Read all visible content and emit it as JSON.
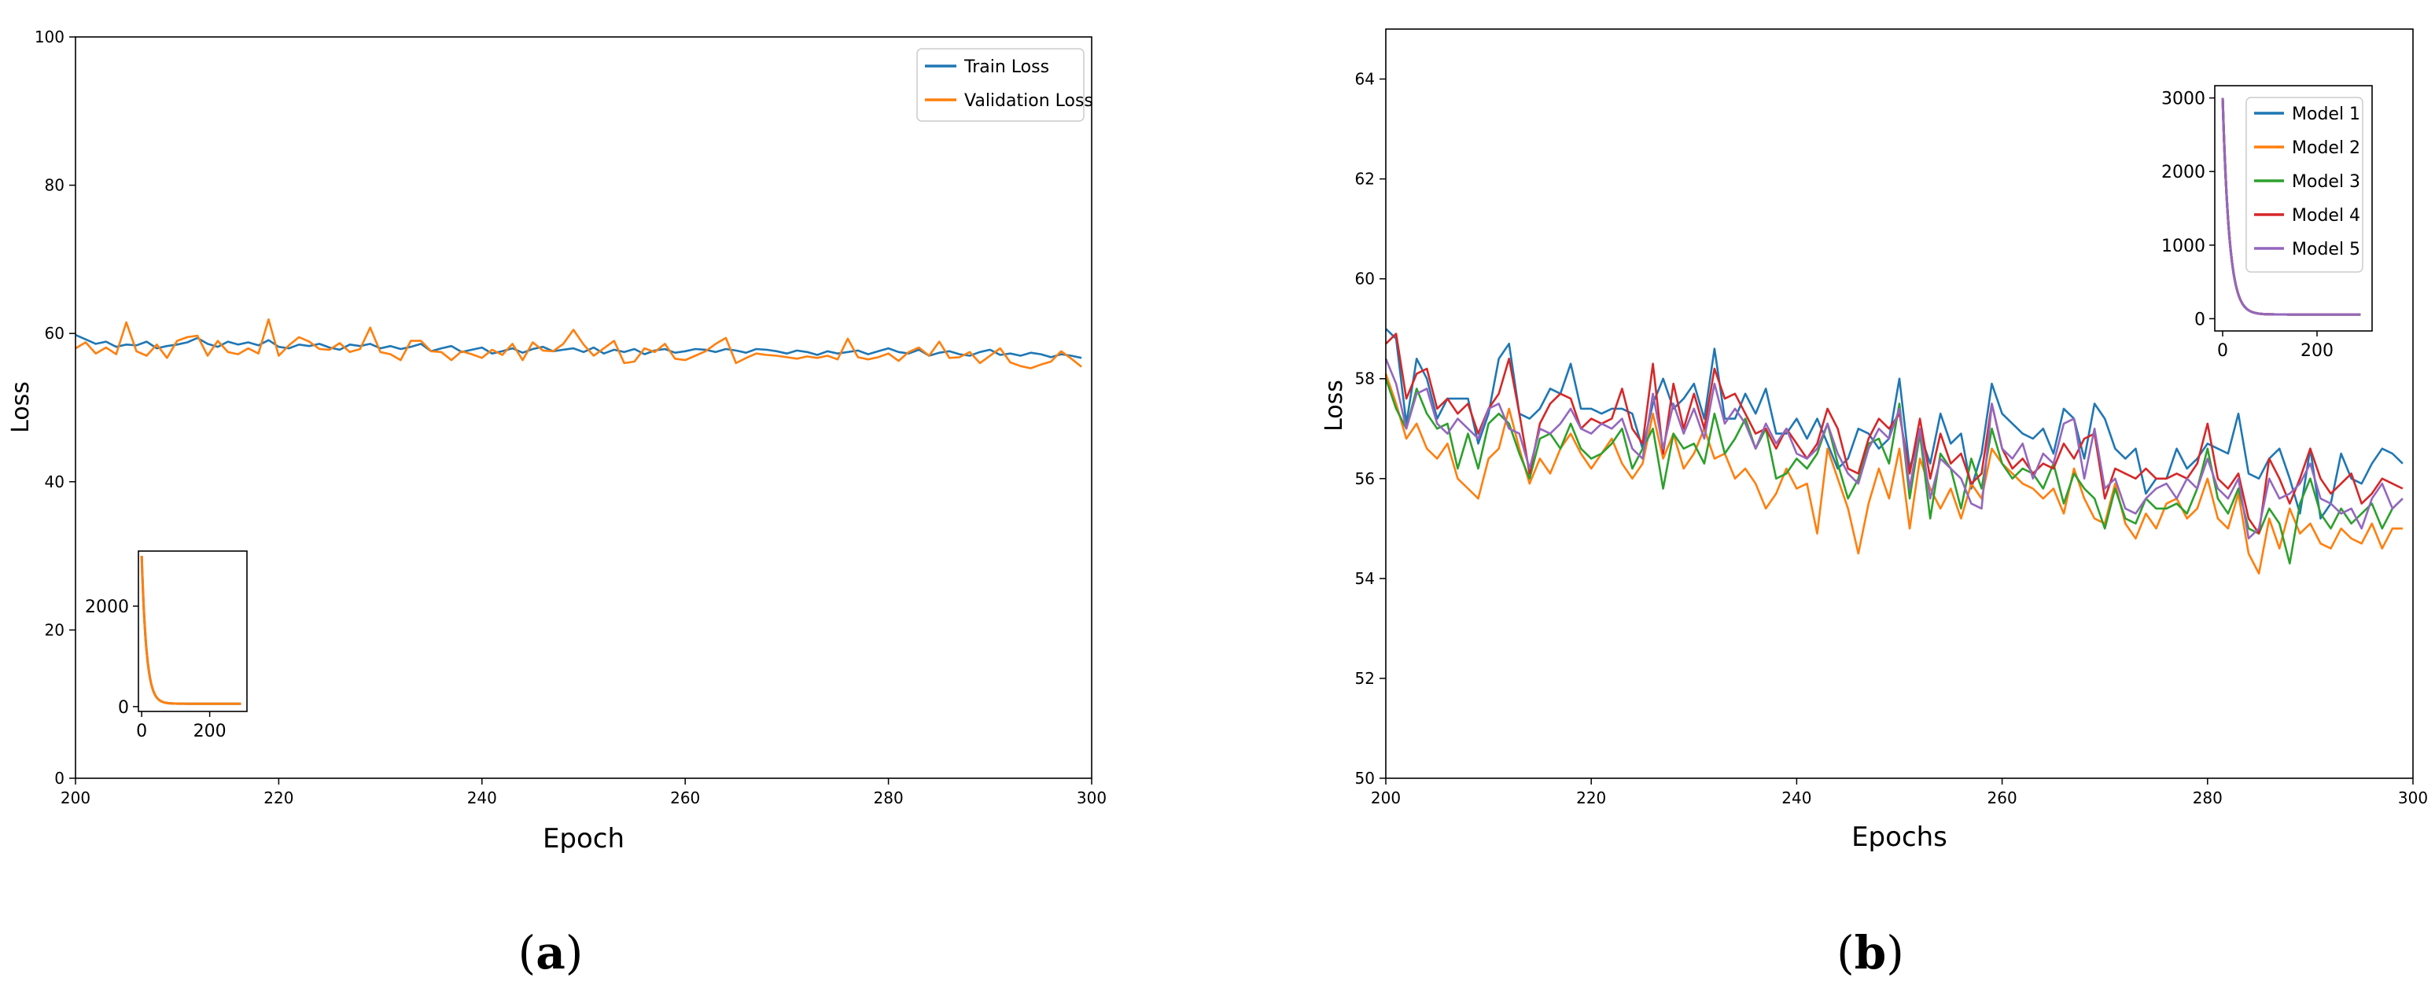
{
  "chart_data": [
    {
      "type": "line",
      "panel_label_open": "(",
      "panel_label_letter": "a",
      "panel_label_close": ")",
      "xlabel": "Epoch",
      "ylabel": "Loss",
      "xlim": [
        200,
        300
      ],
      "ylim": [
        0,
        100
      ],
      "xticks": [
        200,
        220,
        240,
        260,
        280,
        300
      ],
      "yticks": [
        0,
        20,
        40,
        60,
        80,
        100
      ],
      "grid": false,
      "legend_position": "top-right",
      "x": [
        200,
        201,
        202,
        203,
        204,
        205,
        206,
        207,
        208,
        209,
        210,
        211,
        212,
        213,
        214,
        215,
        216,
        217,
        218,
        219,
        220,
        221,
        222,
        223,
        224,
        225,
        226,
        227,
        228,
        229,
        230,
        231,
        232,
        233,
        234,
        235,
        236,
        237,
        238,
        239,
        240,
        241,
        242,
        243,
        244,
        245,
        246,
        247,
        248,
        249,
        250,
        251,
        252,
        253,
        254,
        255,
        256,
        257,
        258,
        259,
        260,
        261,
        262,
        263,
        264,
        265,
        266,
        267,
        268,
        269,
        270,
        271,
        272,
        273,
        274,
        275,
        276,
        277,
        278,
        279,
        280,
        281,
        282,
        283,
        284,
        285,
        286,
        287,
        288,
        289,
        290,
        291,
        292,
        293,
        294,
        295,
        296,
        297,
        298,
        299
      ],
      "series": [
        {
          "name": "Train Loss",
          "color": "#1f77b4",
          "values": [
            59.8,
            59.2,
            58.6,
            58.9,
            58.2,
            58.5,
            58.4,
            58.9,
            58.0,
            58.3,
            58.5,
            58.8,
            59.4,
            58.6,
            58.2,
            58.9,
            58.5,
            58.8,
            58.4,
            59.1,
            58.2,
            58.0,
            58.5,
            58.3,
            58.6,
            58.1,
            57.8,
            58.5,
            58.3,
            58.6,
            58.0,
            58.3,
            57.9,
            58.2,
            58.6,
            57.6,
            58.0,
            58.3,
            57.5,
            57.8,
            58.1,
            57.3,
            57.6,
            58.0,
            57.4,
            57.9,
            58.2,
            57.6,
            57.8,
            58.0,
            57.5,
            58.1,
            57.3,
            57.8,
            57.5,
            57.9,
            57.2,
            57.7,
            57.9,
            57.4,
            57.6,
            57.9,
            57.8,
            57.5,
            57.9,
            57.7,
            57.4,
            57.9,
            57.8,
            57.6,
            57.3,
            57.7,
            57.5,
            57.1,
            57.6,
            57.3,
            57.5,
            57.7,
            57.2,
            57.6,
            58.0,
            57.5,
            57.3,
            57.8,
            57.0,
            57.4,
            57.6,
            57.2,
            57.0,
            57.5,
            57.8,
            57.1,
            57.3,
            57.0,
            57.4,
            57.2,
            56.8,
            57.2,
            57.0,
            56.7
          ]
        },
        {
          "name": "Validation Loss",
          "color": "#ff7f0e",
          "values": [
            58.0,
            58.8,
            57.3,
            58.1,
            57.2,
            61.5,
            57.6,
            57.0,
            58.5,
            56.7,
            59.0,
            59.5,
            59.7,
            57.0,
            59.0,
            57.5,
            57.2,
            58.0,
            57.3,
            61.9,
            57.0,
            58.4,
            59.5,
            58.9,
            57.9,
            57.8,
            58.7,
            57.5,
            57.9,
            60.8,
            57.5,
            57.2,
            56.4,
            59.0,
            59.0,
            57.6,
            57.5,
            56.4,
            57.6,
            57.2,
            56.7,
            57.8,
            57.1,
            58.6,
            56.4,
            58.8,
            57.7,
            57.6,
            58.6,
            60.5,
            58.5,
            57.0,
            58.0,
            59.0,
            56.0,
            56.2,
            58.0,
            57.5,
            58.6,
            56.6,
            56.4,
            57.0,
            57.6,
            58.6,
            59.4,
            56.0,
            56.7,
            57.3,
            57.1,
            57.0,
            56.8,
            56.6,
            56.9,
            56.7,
            57.0,
            56.5,
            59.3,
            56.8,
            56.5,
            56.8,
            57.3,
            56.3,
            57.5,
            58.1,
            57.0,
            58.9,
            56.7,
            56.8,
            57.5,
            56.0,
            57.0,
            58.0,
            56.1,
            55.6,
            55.3,
            55.8,
            56.2,
            57.6,
            56.6,
            55.5
          ]
        }
      ],
      "inset": {
        "type": "line",
        "xlim": [
          0,
          300
        ],
        "ylim": [
          0,
          3000
        ],
        "xticks": [
          0,
          200
        ],
        "yticks": [
          0,
          2000
        ],
        "start_value": 3000,
        "floor_value": 58
      }
    },
    {
      "type": "line",
      "panel_label_open": "(",
      "panel_label_letter": "b",
      "panel_label_close": ")",
      "xlabel": "Epochs",
      "ylabel": "Loss",
      "xlim": [
        200,
        300
      ],
      "ylim": [
        50,
        65
      ],
      "xticks": [
        200,
        220,
        240,
        260,
        280,
        300
      ],
      "yticks": [
        50,
        52,
        54,
        56,
        58,
        60,
        62,
        64
      ],
      "grid": false,
      "legend_position": "top-right (inside inset)",
      "x": [
        200,
        201,
        202,
        203,
        204,
        205,
        206,
        207,
        208,
        209,
        210,
        211,
        212,
        213,
        214,
        215,
        216,
        217,
        218,
        219,
        220,
        221,
        222,
        223,
        224,
        225,
        226,
        227,
        228,
        229,
        230,
        231,
        232,
        233,
        234,
        235,
        236,
        237,
        238,
        239,
        240,
        241,
        242,
        243,
        244,
        245,
        246,
        247,
        248,
        249,
        250,
        251,
        252,
        253,
        254,
        255,
        256,
        257,
        258,
        259,
        260,
        261,
        262,
        263,
        264,
        265,
        266,
        267,
        268,
        269,
        270,
        271,
        272,
        273,
        274,
        275,
        276,
        277,
        278,
        279,
        280,
        281,
        282,
        283,
        284,
        285,
        286,
        287,
        288,
        289,
        290,
        291,
        292,
        293,
        294,
        295,
        296,
        297,
        298,
        299
      ],
      "series": [
        {
          "name": "Model 1",
          "color": "#1f77b4",
          "values": [
            59.0,
            58.8,
            57.1,
            58.4,
            58.0,
            57.2,
            57.6,
            57.6,
            57.6,
            56.7,
            57.3,
            58.4,
            58.7,
            57.3,
            57.2,
            57.4,
            57.8,
            57.7,
            58.3,
            57.4,
            57.4,
            57.3,
            57.4,
            57.4,
            57.3,
            56.6,
            57.5,
            58.0,
            57.4,
            57.6,
            57.9,
            57.2,
            58.6,
            57.2,
            57.2,
            57.7,
            57.3,
            57.8,
            56.9,
            56.9,
            57.2,
            56.8,
            57.2,
            56.7,
            56.2,
            56.4,
            57.0,
            56.9,
            56.6,
            56.8,
            58.0,
            56.2,
            56.9,
            56.3,
            57.3,
            56.7,
            56.9,
            55.8,
            56.5,
            57.9,
            57.3,
            57.1,
            56.9,
            56.8,
            57.0,
            56.5,
            57.4,
            57.2,
            56.4,
            57.5,
            57.2,
            56.6,
            56.4,
            56.6,
            55.7,
            56.0,
            56.0,
            56.6,
            56.2,
            56.4,
            56.7,
            56.6,
            56.5,
            57.3,
            56.1,
            56.0,
            56.4,
            56.6,
            56.0,
            55.3,
            56.6,
            55.2,
            55.5,
            56.5,
            56.0,
            55.9,
            56.3,
            56.6,
            56.5,
            56.3
          ]
        },
        {
          "name": "Model 2",
          "color": "#ff7f0e",
          "values": [
            58.1,
            57.5,
            56.8,
            57.1,
            56.6,
            56.4,
            56.7,
            56.0,
            55.8,
            55.6,
            56.4,
            56.6,
            57.4,
            56.6,
            55.9,
            56.4,
            56.1,
            56.6,
            56.9,
            56.5,
            56.2,
            56.5,
            56.8,
            56.3,
            56.0,
            56.3,
            57.3,
            56.4,
            56.9,
            56.2,
            56.5,
            57.0,
            56.4,
            56.5,
            56.0,
            56.2,
            55.9,
            55.4,
            55.7,
            56.2,
            55.8,
            55.9,
            54.9,
            56.6,
            56.0,
            55.4,
            54.5,
            55.5,
            56.2,
            55.6,
            56.6,
            55.0,
            56.4,
            55.8,
            55.4,
            55.8,
            55.2,
            55.9,
            55.6,
            56.6,
            56.3,
            56.1,
            55.9,
            55.8,
            55.6,
            55.8,
            55.3,
            56.2,
            55.6,
            55.2,
            55.1,
            55.9,
            55.1,
            54.8,
            55.3,
            55.0,
            55.5,
            55.6,
            55.2,
            55.4,
            56.0,
            55.2,
            55.0,
            55.7,
            54.5,
            54.1,
            55.2,
            54.6,
            55.4,
            54.9,
            55.1,
            54.7,
            54.6,
            55.0,
            54.8,
            54.7,
            55.1,
            54.6,
            55.0,
            55.0
          ]
        },
        {
          "name": "Model 3",
          "color": "#2ca02c",
          "values": [
            58.0,
            57.4,
            57.0,
            57.8,
            57.3,
            57.0,
            57.1,
            56.2,
            56.9,
            56.2,
            57.1,
            57.3,
            57.1,
            56.5,
            56.0,
            56.8,
            56.9,
            56.6,
            57.1,
            56.6,
            56.4,
            56.5,
            56.7,
            57.0,
            56.2,
            56.6,
            57.0,
            55.8,
            56.9,
            56.6,
            56.7,
            56.3,
            57.3,
            56.5,
            56.8,
            57.2,
            56.6,
            57.0,
            56.0,
            56.1,
            56.4,
            56.2,
            56.5,
            57.1,
            56.3,
            55.6,
            56.0,
            56.7,
            56.8,
            56.3,
            57.5,
            55.6,
            56.9,
            55.2,
            56.5,
            56.2,
            55.4,
            56.4,
            55.8,
            57.0,
            56.3,
            56.0,
            56.2,
            56.1,
            55.8,
            56.3,
            55.5,
            56.1,
            55.8,
            55.6,
            55.0,
            55.8,
            55.2,
            55.1,
            55.6,
            55.4,
            55.4,
            55.5,
            55.3,
            55.8,
            56.6,
            55.6,
            55.3,
            55.8,
            55.0,
            54.9,
            55.4,
            55.1,
            54.3,
            55.5,
            56.0,
            55.3,
            55.0,
            55.4,
            55.1,
            55.3,
            55.5,
            55.0,
            55.4,
            55.6
          ]
        },
        {
          "name": "Model 4",
          "color": "#d62728",
          "values": [
            58.7,
            58.9,
            57.6,
            58.1,
            58.2,
            57.4,
            57.6,
            57.3,
            57.5,
            56.9,
            57.4,
            57.7,
            58.4,
            57.3,
            56.1,
            57.1,
            57.5,
            57.7,
            57.6,
            57.0,
            57.2,
            57.1,
            57.2,
            57.8,
            57.0,
            56.7,
            58.3,
            56.5,
            57.9,
            57.0,
            57.7,
            57.0,
            58.2,
            57.6,
            57.7,
            57.3,
            56.9,
            57.0,
            56.6,
            57.0,
            56.7,
            56.4,
            56.7,
            57.4,
            57.0,
            56.2,
            56.1,
            56.8,
            57.2,
            57.0,
            57.3,
            56.1,
            57.2,
            56.0,
            56.9,
            56.3,
            56.5,
            55.9,
            56.1,
            57.5,
            56.6,
            56.2,
            56.4,
            56.1,
            56.3,
            56.2,
            56.7,
            56.4,
            56.8,
            56.9,
            55.6,
            56.2,
            56.1,
            56.0,
            56.2,
            56.0,
            56.0,
            56.1,
            56.0,
            56.3,
            57.1,
            56.0,
            55.8,
            56.1,
            55.2,
            54.9,
            56.4,
            56.0,
            55.5,
            56.0,
            56.6,
            56.0,
            55.7,
            55.9,
            56.1,
            55.5,
            55.7,
            56.0,
            55.9,
            55.8
          ]
        },
        {
          "name": "Model 5",
          "color": "#9467bd",
          "values": [
            58.4,
            57.9,
            57.0,
            57.7,
            57.8,
            57.1,
            56.9,
            57.2,
            57.0,
            56.8,
            57.4,
            57.5,
            57.0,
            56.9,
            56.2,
            57.0,
            56.9,
            57.1,
            57.4,
            57.0,
            56.9,
            57.1,
            57.0,
            57.2,
            56.6,
            56.4,
            57.7,
            56.6,
            57.5,
            56.9,
            57.4,
            56.8,
            57.9,
            57.1,
            57.4,
            57.1,
            56.6,
            57.1,
            56.7,
            57.0,
            56.5,
            56.4,
            56.6,
            57.1,
            56.5,
            56.1,
            55.9,
            56.6,
            57.0,
            56.8,
            57.4,
            55.8,
            57.0,
            55.6,
            56.4,
            56.2,
            56.0,
            55.5,
            55.4,
            57.5,
            56.6,
            56.4,
            56.7,
            56.0,
            56.5,
            56.3,
            57.1,
            57.2,
            56.0,
            57.0,
            55.8,
            56.0,
            55.4,
            55.3,
            55.6,
            55.8,
            55.9,
            55.6,
            56.0,
            55.8,
            56.4,
            55.8,
            55.6,
            56.0,
            54.8,
            55.0,
            56.0,
            55.6,
            55.7,
            55.9,
            56.3,
            55.6,
            55.5,
            55.3,
            55.4,
            55.0,
            55.6,
            55.9,
            55.4,
            55.6
          ]
        }
      ],
      "inset": {
        "type": "line",
        "xlim": [
          0,
          300
        ],
        "ylim": [
          0,
          3000
        ],
        "xticks": [
          0,
          200
        ],
        "yticks": [
          0,
          1000,
          2000,
          3000
        ],
        "start_value": 3000,
        "floor_value": 57
      }
    }
  ]
}
